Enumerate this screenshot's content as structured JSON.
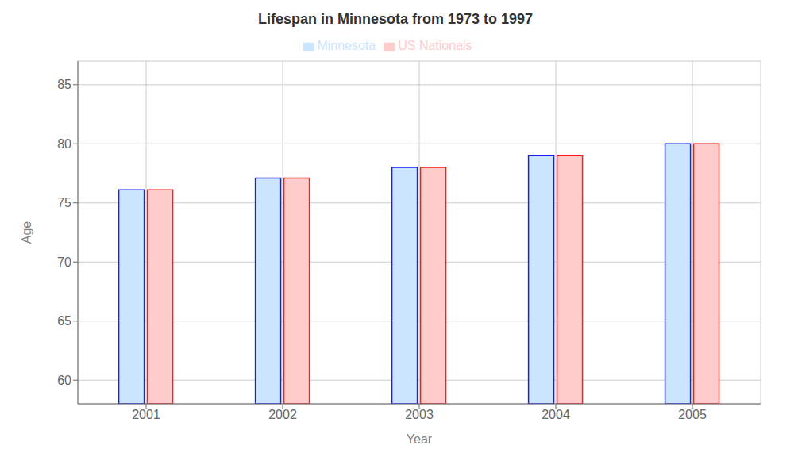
{
  "chart_data": {
    "type": "bar",
    "title": "Lifespan in Minnesota from 1973 to 1997",
    "xlabel": "Year",
    "ylabel": "Age",
    "categories": [
      "2001",
      "2002",
      "2003",
      "2004",
      "2005"
    ],
    "series": [
      {
        "name": "Minnesota",
        "color": "#cce5ff",
        "values": [
          76.1,
          77.1,
          78.0,
          79.0,
          80.0
        ]
      },
      {
        "name": "US Nationals",
        "color": "#ffcccc",
        "values": [
          76.1,
          77.1,
          78.0,
          79.0,
          80.0
        ]
      }
    ],
    "ylim": [
      58,
      87
    ],
    "yticks": [
      60,
      65,
      70,
      75,
      80,
      85
    ],
    "grid": true,
    "legend": "top"
  }
}
